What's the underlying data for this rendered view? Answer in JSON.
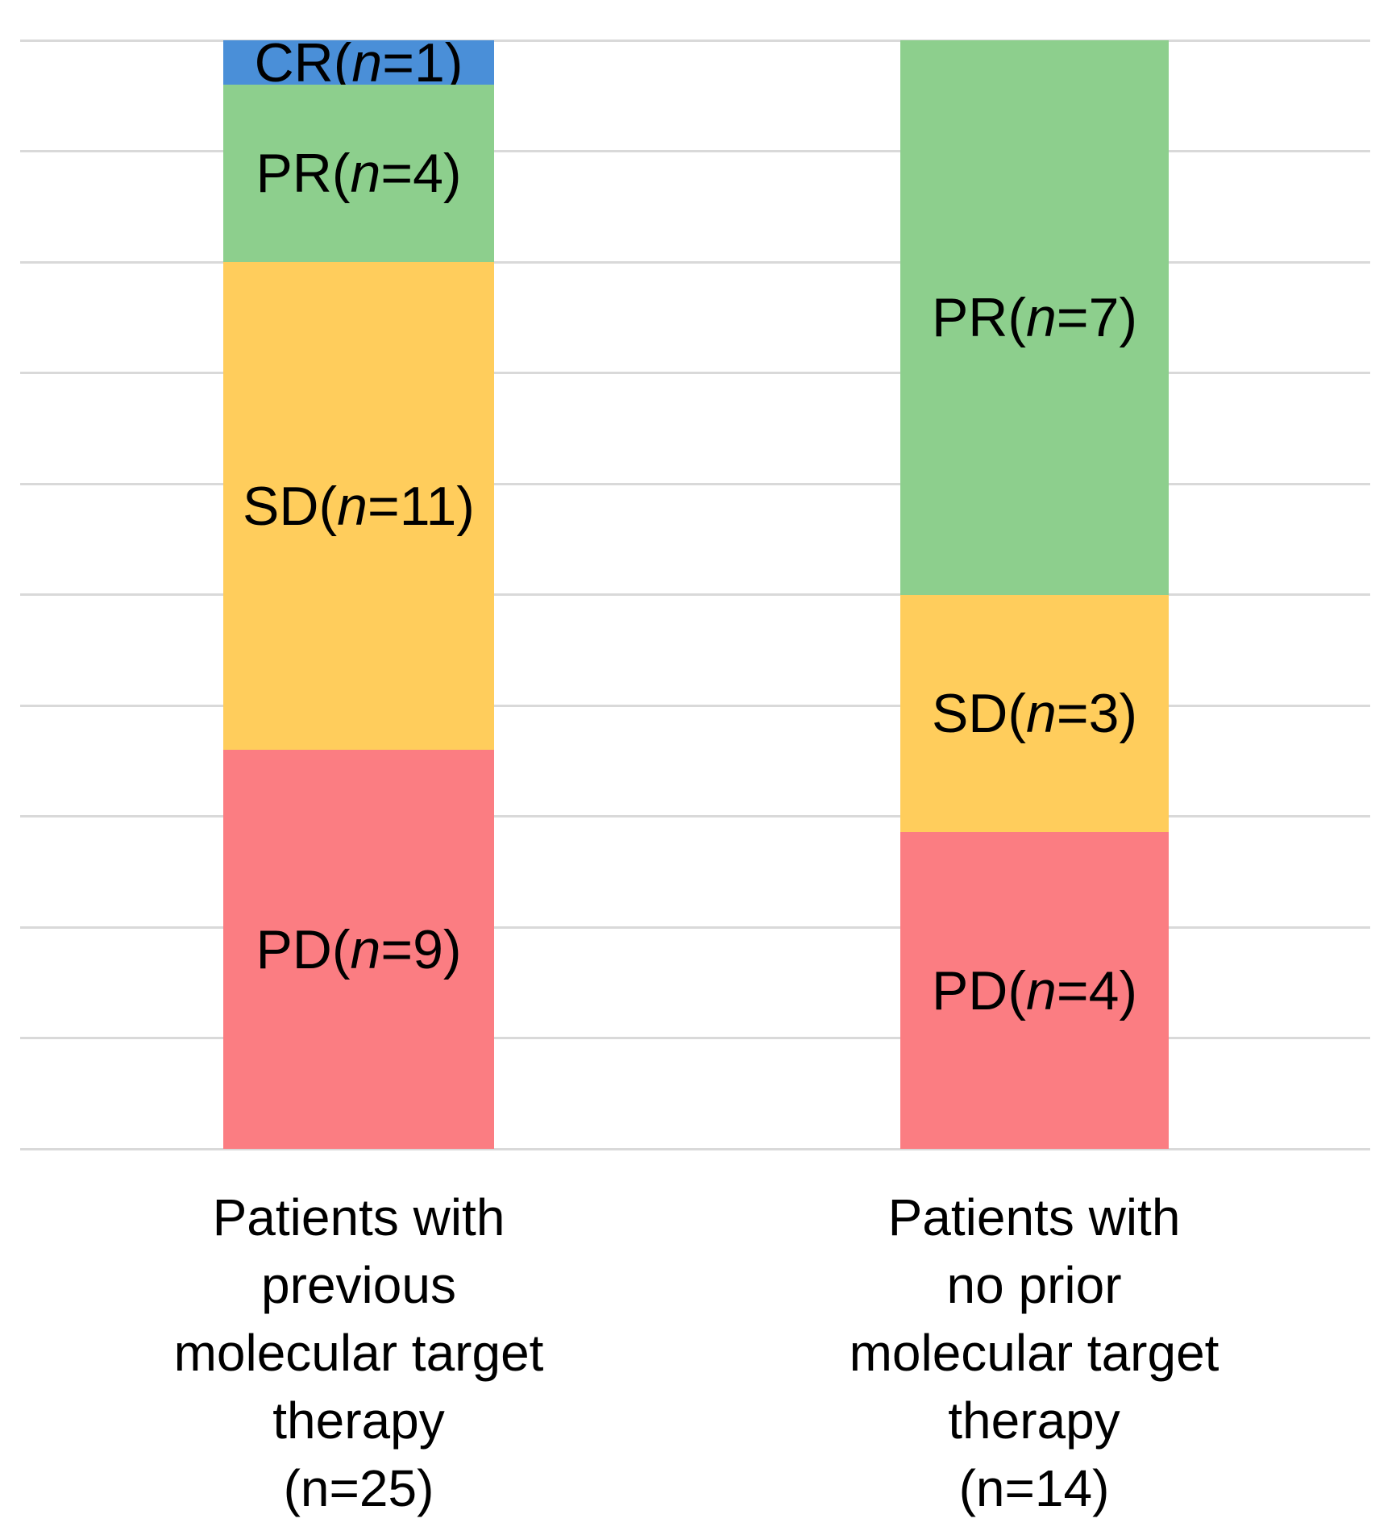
{
  "chart_data": {
    "type": "bar",
    "subtype": "stacked-100-percent-column",
    "orientation": "vertical",
    "title": "",
    "xlabel": "",
    "ylabel": "",
    "axis_range_pct": [
      0,
      100
    ],
    "gridlines": {
      "visible": true,
      "interval_pct": 10,
      "count": 11,
      "color": "#D9D9D9"
    },
    "legend": "none",
    "n_symbol": "n",
    "label_format": "CODE(n=N)",
    "colors": {
      "CR": "#4A8FD8",
      "PR": "#8DCF8D",
      "SD": "#FFCD5C",
      "PD": "#FB7D82"
    },
    "categories": [
      {
        "name": "Patients with previous molecular target therapy (n=25)",
        "lines": [
          "Patients with",
          "previous",
          "molecular target",
          "therapy",
          "(n=25)"
        ],
        "total": 25
      },
      {
        "name": "Patients with no prior molecular target therapy (n=14)",
        "lines": [
          "Patients with",
          "no prior",
          "molecular target",
          "therapy",
          "(n=14)"
        ],
        "total": 14
      }
    ],
    "bars": [
      {
        "segments": [
          {
            "code": "CR",
            "label": "CR(n=1)",
            "n": 1,
            "pct": 4
          },
          {
            "code": "PR",
            "label": "PR(n=4)",
            "n": 4,
            "pct": 16
          },
          {
            "code": "SD",
            "label": "SD(n=11)",
            "n": 11,
            "pct": 44
          },
          {
            "code": "PD",
            "label": "PD(n=9)",
            "n": 9,
            "pct": 36
          }
        ]
      },
      {
        "segments": [
          {
            "code": "PR",
            "label": "PR(n=7)",
            "n": 7,
            "pct": 50
          },
          {
            "code": "SD",
            "label": "SD(n=3)",
            "n": 3,
            "pct": 21.4
          },
          {
            "code": "PD",
            "label": "PD(n=4)",
            "n": 4,
            "pct": 28.6
          }
        ]
      }
    ],
    "text_color": "#000000",
    "background_color": "#FFFFFF"
  }
}
